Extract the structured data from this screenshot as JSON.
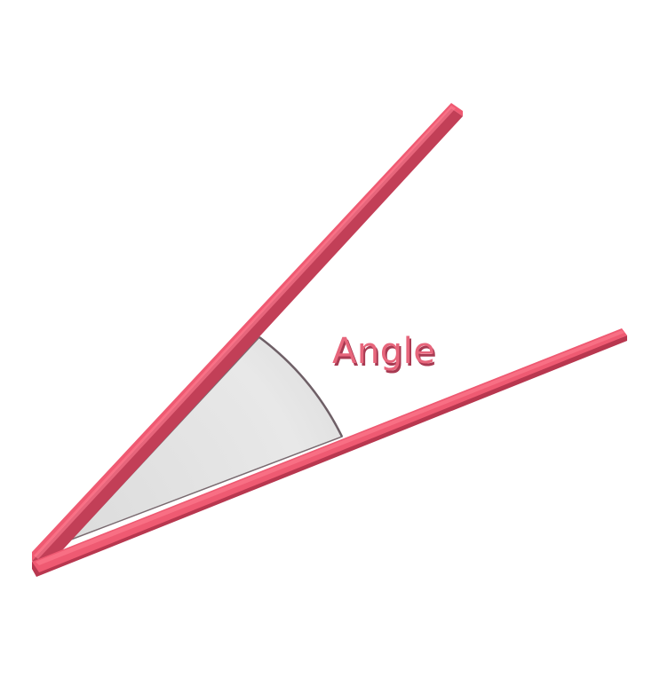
{
  "label": "Angle",
  "colors": {
    "ray": "#ef5a72",
    "ray_shadow": "#b8374f",
    "ray_highlight": "#ff8194",
    "sector_fill": "#e4e4e4",
    "sector_edge": "#7a6a70",
    "label": "#e7667c",
    "label_shadow": "#a83a52"
  }
}
